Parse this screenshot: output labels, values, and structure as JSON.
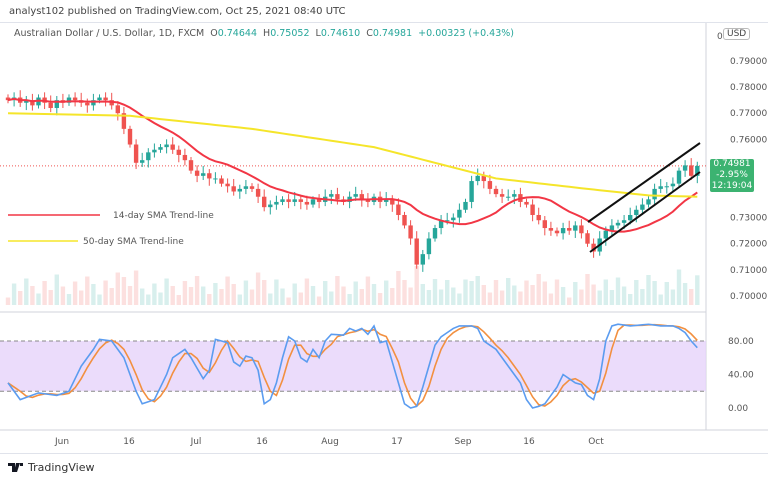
{
  "header": {
    "published": "analyst102 published on TradingView.com, Oct 25, 2021 08:40 UTC"
  },
  "legend": {
    "symbol": "Australian Dollar / U.S. Dollar, 1D, FXCM",
    "o_label": "O",
    "o": "0.74644",
    "h_label": "H",
    "h": "0.75052",
    "l_label": "L",
    "l": "0.74610",
    "c_label": "C",
    "c": "0.74981",
    "change": "+0.00323 (+0.43%)"
  },
  "currency": "USD",
  "price_box": {
    "price": "0.74981",
    "change": "-2.95%",
    "countdown": "12:19:04"
  },
  "price_axis": [
    "0.79000",
    "0.78000",
    "0.77000",
    "0.76000",
    "0.73000",
    "0.72000",
    "0.71000",
    "0.70000"
  ],
  "stoch_axis": [
    "80.00",
    "40.00",
    "0.00"
  ],
  "time_axis": [
    "Jun",
    "16",
    "Jul",
    "16",
    "Aug",
    "17",
    "Sep",
    "16",
    "Oct"
  ],
  "annotations": {
    "sma14": "14-day SMA Trend-line",
    "sma50": "50-day SMA Trend-line"
  },
  "footer": {
    "logo": "TradingView"
  },
  "colors": {
    "up": "#26a69a",
    "down": "#ef5350",
    "sma14": "#f23645",
    "sma50": "#f5e52a",
    "stoch_k": "#5b9cf0",
    "stoch_d": "#f29040",
    "stoch_band": "#e6d3fa"
  },
  "chart_data": {
    "type": "candlestick",
    "closes": [
      0.775,
      0.776,
      0.774,
      0.775,
      0.773,
      0.776,
      0.774,
      0.772,
      0.775,
      0.774,
      0.776,
      0.775,
      0.774,
      0.773,
      0.775,
      0.776,
      0.775,
      0.773,
      0.77,
      0.764,
      0.758,
      0.751,
      0.752,
      0.755,
      0.756,
      0.757,
      0.758,
      0.756,
      0.754,
      0.752,
      0.748,
      0.746,
      0.747,
      0.745,
      0.745,
      0.743,
      0.742,
      0.74,
      0.741,
      0.742,
      0.741,
      0.738,
      0.734,
      0.735,
      0.736,
      0.737,
      0.736,
      0.737,
      0.736,
      0.735,
      0.737,
      0.736,
      0.738,
      0.739,
      0.737,
      0.736,
      0.738,
      0.739,
      0.737,
      0.736,
      0.738,
      0.736,
      0.737,
      0.735,
      0.731,
      0.727,
      0.722,
      0.712,
      0.716,
      0.722,
      0.726,
      0.729,
      0.729,
      0.73,
      0.733,
      0.736,
      0.744,
      0.746,
      0.744,
      0.741,
      0.739,
      0.738,
      0.738,
      0.739,
      0.736,
      0.735,
      0.731,
      0.729,
      0.726,
      0.725,
      0.724,
      0.726,
      0.725,
      0.727,
      0.724,
      0.72,
      0.717,
      0.722,
      0.725,
      0.727,
      0.728,
      0.729,
      0.731,
      0.733,
      0.735,
      0.737,
      0.741,
      0.742,
      0.742,
      0.743,
      0.748,
      0.75,
      0.746,
      0.7498
    ],
    "sma50": [
      [
        0,
        0.77
      ],
      [
        20,
        0.769
      ],
      [
        40,
        0.764
      ],
      [
        60,
        0.757
      ],
      [
        80,
        0.745
      ],
      [
        95,
        0.741
      ],
      [
        105,
        0.7385
      ],
      [
        113,
        0.738
      ]
    ],
    "stoch_k": [
      [
        0,
        30
      ],
      [
        2,
        10
      ],
      [
        5,
        18
      ],
      [
        8,
        15
      ],
      [
        10,
        20
      ],
      [
        12,
        50
      ],
      [
        14,
        70
      ],
      [
        15,
        82
      ],
      [
        17,
        80
      ],
      [
        19,
        60
      ],
      [
        21,
        20
      ],
      [
        22,
        5
      ],
      [
        24,
        10
      ],
      [
        26,
        40
      ],
      [
        27,
        60
      ],
      [
        29,
        70
      ],
      [
        30,
        60
      ],
      [
        32,
        35
      ],
      [
        33,
        45
      ],
      [
        34,
        82
      ],
      [
        36,
        78
      ],
      [
        37,
        55
      ],
      [
        38,
        50
      ],
      [
        39,
        62
      ],
      [
        40,
        60
      ],
      [
        41,
        45
      ],
      [
        42,
        5
      ],
      [
        43,
        10
      ],
      [
        44,
        30
      ],
      [
        45,
        60
      ],
      [
        46,
        85
      ],
      [
        47,
        80
      ],
      [
        48,
        60
      ],
      [
        49,
        55
      ],
      [
        50,
        70
      ],
      [
        51,
        60
      ],
      [
        52,
        80
      ],
      [
        53,
        88
      ],
      [
        55,
        87
      ],
      [
        56,
        95
      ],
      [
        57,
        92
      ],
      [
        58,
        95
      ],
      [
        59,
        88
      ],
      [
        60,
        98
      ],
      [
        61,
        78
      ],
      [
        62,
        80
      ],
      [
        63,
        55
      ],
      [
        64,
        30
      ],
      [
        65,
        5
      ],
      [
        66,
        0
      ],
      [
        67,
        2
      ],
      [
        68,
        25
      ],
      [
        69,
        50
      ],
      [
        70,
        75
      ],
      [
        71,
        85
      ],
      [
        72,
        90
      ],
      [
        73,
        95
      ],
      [
        74,
        98
      ],
      [
        76,
        98
      ],
      [
        77,
        95
      ],
      [
        78,
        80
      ],
      [
        80,
        70
      ],
      [
        82,
        50
      ],
      [
        84,
        30
      ],
      [
        85,
        10
      ],
      [
        86,
        0
      ],
      [
        87,
        2
      ],
      [
        88,
        5
      ],
      [
        89,
        15
      ],
      [
        90,
        25
      ],
      [
        91,
        40
      ],
      [
        92,
        35
      ],
      [
        93,
        30
      ],
      [
        94,
        28
      ],
      [
        95,
        15
      ],
      [
        96,
        10
      ],
      [
        97,
        35
      ],
      [
        98,
        80
      ],
      [
        99,
        98
      ],
      [
        100,
        100
      ],
      [
        102,
        98
      ],
      [
        105,
        100
      ],
      [
        107,
        98
      ],
      [
        109,
        98
      ],
      [
        110,
        95
      ],
      [
        111,
        90
      ],
      [
        112,
        80
      ],
      [
        113,
        72
      ]
    ],
    "stoch_levels": [
      80,
      40,
      0
    ],
    "price_range": [
      0.695,
      0.8
    ]
  }
}
